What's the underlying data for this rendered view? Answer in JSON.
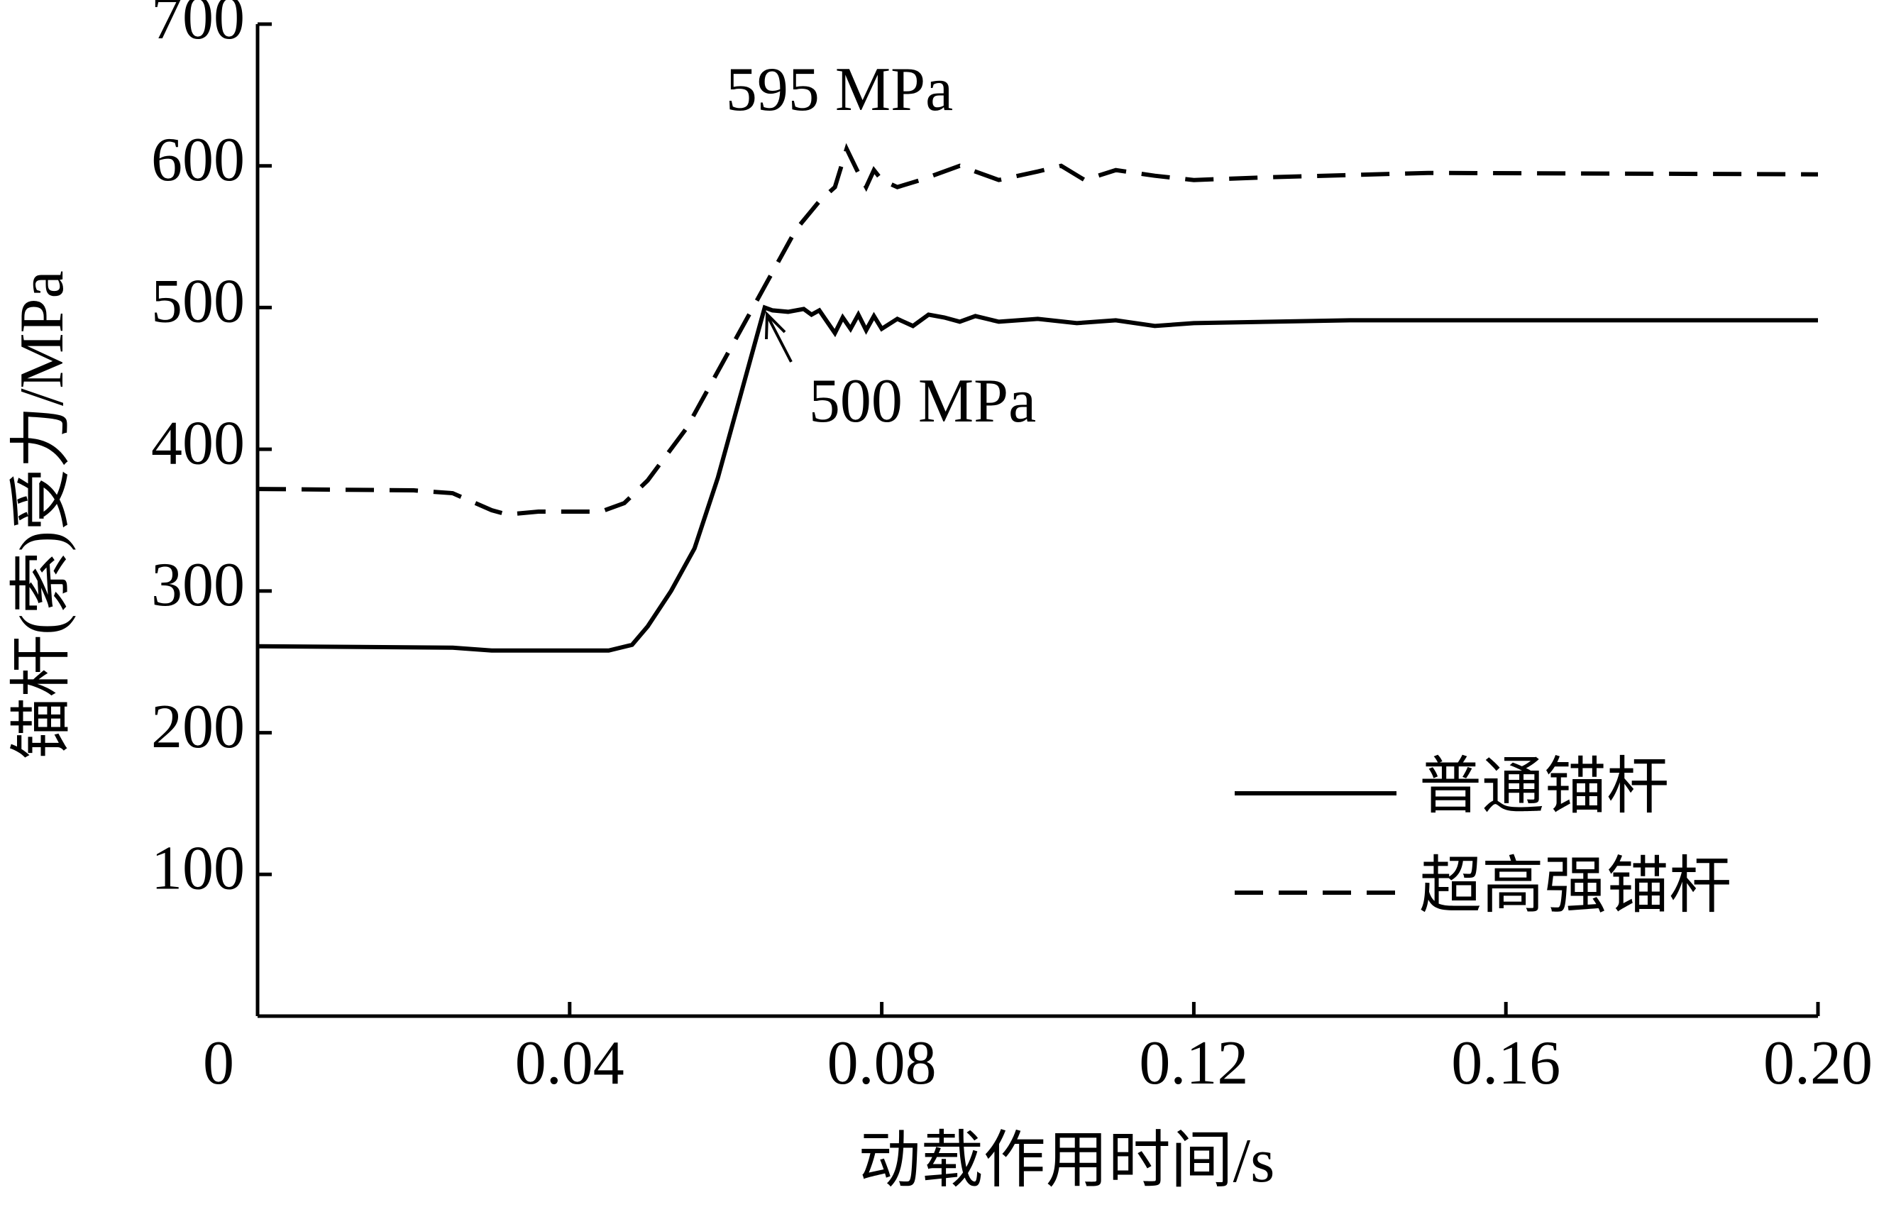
{
  "chart_data": {
    "type": "line",
    "x_label": "动载作用时间/s",
    "y_label": "锚杆(索)受力/MPa",
    "xlim": [
      0,
      0.2
    ],
    "ylim": [
      0,
      700
    ],
    "xticks": [
      0,
      0.04,
      0.08,
      0.12,
      0.16,
      {
        "value": 0.2,
        "label": "0.20"
      }
    ],
    "yticks": [
      100,
      200,
      300,
      400,
      500,
      600,
      700
    ],
    "legend": "lower right",
    "annotations": [
      "595 MPa",
      "500 MPa"
    ],
    "series": [
      {
        "name": "普通锚杆",
        "color": "#000000",
        "line_style": "solid",
        "x": [
          0,
          0.025,
          0.03,
          0.04,
          0.045,
          0.048,
          0.05,
          0.053,
          0.056,
          0.059,
          0.062,
          0.065,
          0.066,
          0.068,
          0.07,
          0.071,
          0.072,
          0.073,
          0.074,
          0.075,
          0.076,
          0.077,
          0.078,
          0.079,
          0.08,
          0.082,
          0.084,
          0.086,
          0.088,
          0.09,
          0.092,
          0.095,
          0.1,
          0.105,
          0.11,
          0.115,
          0.12,
          0.13,
          0.14,
          0.16,
          0.18,
          0.2
        ],
        "values": [
          261,
          260,
          258,
          258,
          258,
          262,
          275,
          300,
          330,
          380,
          440,
          500,
          498,
          497,
          499,
          495,
          498,
          490,
          482,
          493,
          485,
          495,
          484,
          494,
          485,
          492,
          487,
          495,
          493,
          490,
          494,
          490,
          492,
          489,
          491,
          487,
          489,
          490,
          491,
          491,
          491,
          491
        ]
      },
      {
        "name": "超高强锚杆",
        "color": "#000000",
        "line_style": "dashed",
        "x": [
          0,
          0.02,
          0.025,
          0.03,
          0.032,
          0.036,
          0.044,
          0.047,
          0.05,
          0.055,
          0.06,
          0.065,
          0.069,
          0.072,
          0.074,
          0.0755,
          0.077,
          0.078,
          0.079,
          0.08,
          0.082,
          0.085,
          0.09,
          0.095,
          0.1,
          0.103,
          0.106,
          0.11,
          0.115,
          0.12,
          0.13,
          0.15,
          0.2
        ],
        "values": [
          372,
          371,
          369,
          357,
          354,
          356,
          356,
          362,
          378,
          415,
          465,
          515,
          555,
          575,
          585,
          612,
          595,
          585,
          597,
          590,
          585,
          590,
          600,
          590,
          596,
          600,
          590,
          597,
          593,
          590,
          592,
          595,
          594
        ]
      }
    ]
  }
}
